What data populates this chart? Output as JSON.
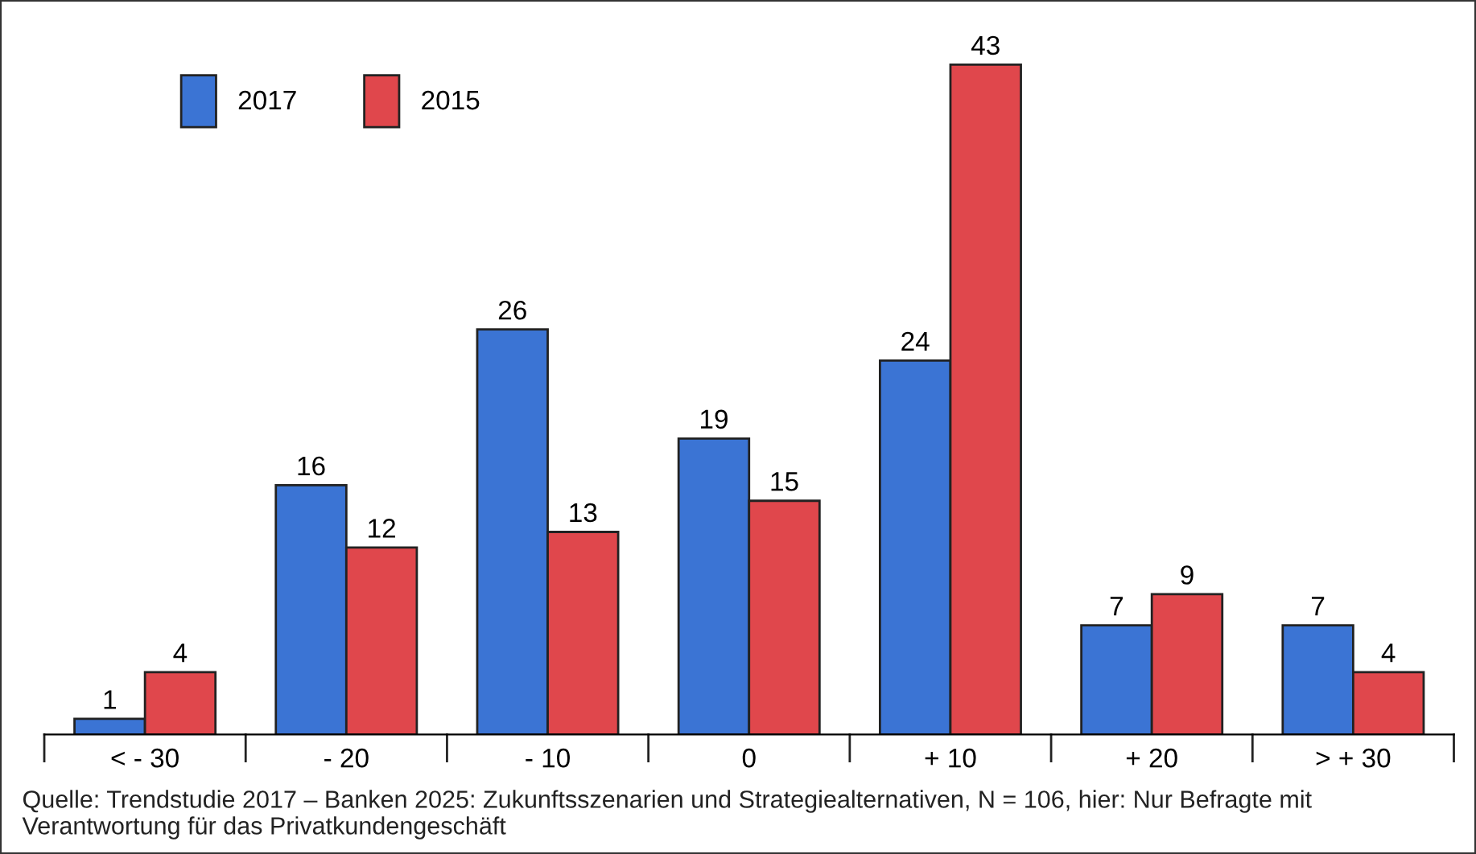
{
  "chart_data": {
    "type": "bar",
    "categories": [
      "< - 30",
      "- 20",
      "- 10",
      "0",
      "+ 10",
      "+ 20",
      "> + 30"
    ],
    "series": [
      {
        "name": "2017",
        "color": "#3b74d4",
        "values": [
          1,
          16,
          26,
          19,
          24,
          7,
          7
        ]
      },
      {
        "name": "2015",
        "color": "#e0474c",
        "values": [
          4,
          12,
          13,
          15,
          43,
          9,
          4
        ]
      }
    ],
    "data_labels": true,
    "legend": "top left",
    "grid": false,
    "annotations": [
      "Quelle: Trendstudie 2017 – Banken 2025: Zukunftsszenarien und Strategiealternativen, N = 106, hier: Nur Befragte mit Verantwortung für das Privatkundengeschäft"
    ]
  }
}
